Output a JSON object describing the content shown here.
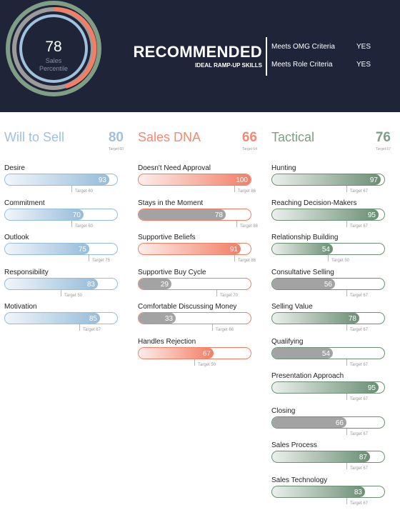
{
  "header": {
    "gauge": {
      "value": "78",
      "label_line1": "Sales",
      "label_line2": "Percentile"
    },
    "recommendation": "RECOMMENDED",
    "subtitle": "IDEAL RAMP-UP SKILLS",
    "criteria": [
      {
        "label": "Meets OMG Criteria",
        "value": "YES"
      },
      {
        "label": "Meets Role Criteria",
        "value": "YES"
      }
    ]
  },
  "colors": {
    "header_bg": "#1f2438",
    "blue": "#96bcda",
    "coral": "#f27e65",
    "green": "#6b8f73",
    "gray": "#a3a3a3",
    "ring_outer": "#7e9e85",
    "ring_mid": "#9b9b9b",
    "ring_inner": "#9ec2de"
  },
  "columns": [
    {
      "id": "will-to-sell",
      "title": "Will to Sell",
      "score": "80",
      "target": "Target 60",
      "color": "#96bcda",
      "title_color": "#9ec2de",
      "skills": [
        {
          "label": "Desire",
          "value": 93,
          "target": 60,
          "target_label": "Target 60",
          "style": "color"
        },
        {
          "label": "Commitment",
          "value": 70,
          "target": 60,
          "target_label": "Target 60",
          "style": "color"
        },
        {
          "label": "Outlook",
          "value": 75,
          "target": 75,
          "target_label": "Target 75",
          "style": "color"
        },
        {
          "label": "Responsibility",
          "value": 83,
          "target": 50,
          "target_label": "Target 50",
          "style": "color"
        },
        {
          "label": "Motivation",
          "value": 85,
          "target": 67,
          "target_label": "Target 67",
          "style": "color"
        }
      ]
    },
    {
      "id": "sales-dna",
      "title": "Sales DNA",
      "score": "66",
      "target": "Target 64",
      "color": "#f27e65",
      "title_color": "#f08a74",
      "skills": [
        {
          "label": "Doesn't Need Approval",
          "value": 100,
          "target": 86,
          "target_label": "Target 86",
          "style": "color"
        },
        {
          "label": "Stays in the Moment",
          "value": 78,
          "target": 88,
          "target_label": "Target 88",
          "style": "gray"
        },
        {
          "label": "Supportive Beliefs",
          "value": 91,
          "target": 86,
          "target_label": "Target 86",
          "style": "color"
        },
        {
          "label": "Supportive Buy Cycle",
          "value": 29,
          "target": 70,
          "target_label": "Target 70",
          "style": "gray"
        },
        {
          "label": "Comfortable Discussing Money",
          "value": 33,
          "target": 66,
          "target_label": "Target 66",
          "style": "gray"
        },
        {
          "label": "Handles Rejection",
          "value": 67,
          "target": 50,
          "target_label": "Target 50",
          "style": "color"
        }
      ]
    },
    {
      "id": "tactical",
      "title": "Tactical",
      "score": "76",
      "target": "Target 67",
      "color": "#6b8f73",
      "title_color": "#7e9e85",
      "skills": [
        {
          "label": "Hunting",
          "value": 97,
          "target": 67,
          "target_label": "Target 67",
          "style": "color"
        },
        {
          "label": "Reaching Decision-Makers",
          "value": 95,
          "target": 67,
          "target_label": "Target 67",
          "style": "color"
        },
        {
          "label": "Relationship Building",
          "value": 54,
          "target": 50,
          "target_label": "Target 50",
          "style": "color"
        },
        {
          "label": "Consultative Selling",
          "value": 56,
          "target": 67,
          "target_label": "Target 67",
          "style": "gray"
        },
        {
          "label": "Selling Value",
          "value": 78,
          "target": 67,
          "target_label": "Target 67",
          "style": "color"
        },
        {
          "label": "Qualifying",
          "value": 54,
          "target": 67,
          "target_label": "Target 67",
          "style": "gray"
        },
        {
          "label": "Presentation Approach",
          "value": 95,
          "target": 67,
          "target_label": "Target 67",
          "style": "color"
        },
        {
          "label": "Closing",
          "value": 66,
          "target": 67,
          "target_label": "Target 67",
          "style": "gray"
        },
        {
          "label": "Sales Process",
          "value": 87,
          "target": 67,
          "target_label": "Target 67",
          "style": "color"
        },
        {
          "label": "Sales Technology",
          "value": 83,
          "target": 67,
          "target_label": "Target 67",
          "style": "color"
        }
      ]
    }
  ]
}
